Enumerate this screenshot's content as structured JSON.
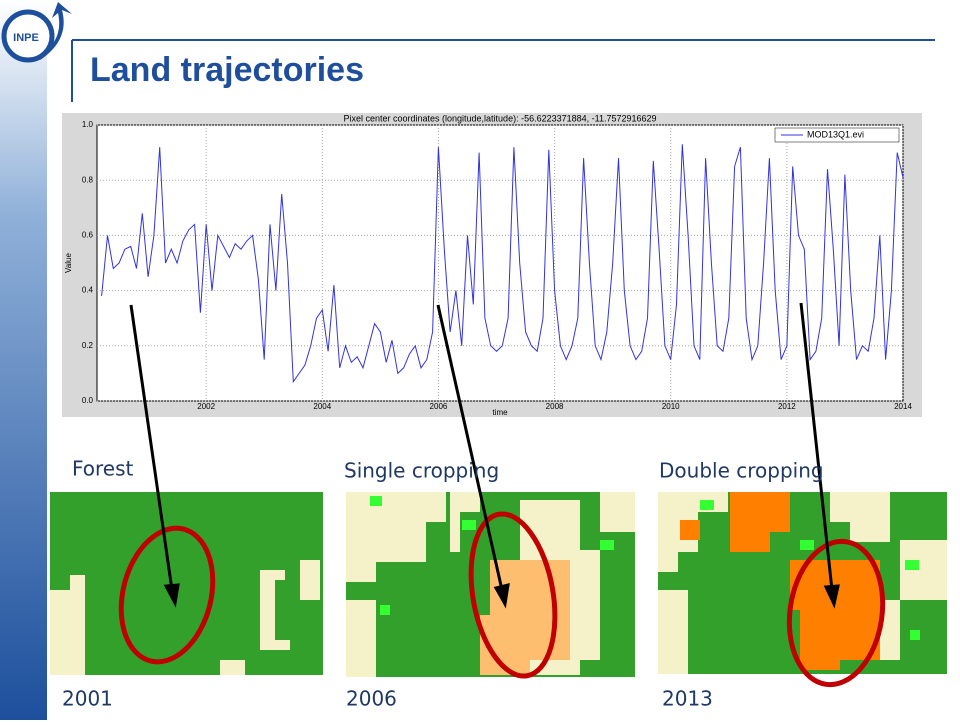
{
  "header": {
    "title": "Land trajectories"
  },
  "chart_data": {
    "type": "line",
    "title": "Pixel center coordinates (longitude,latitude): -56.6223371884, -11.7572916629",
    "xlabel": "time",
    "ylabel": "Value",
    "xlim": [
      2000.12,
      2014
    ],
    "ylim": [
      0,
      1
    ],
    "xticks": [
      2002,
      2004,
      2006,
      2008,
      2010,
      2012,
      2014
    ],
    "yticks": [
      {
        "value": 0,
        "label": "0.0"
      },
      {
        "value": 0.2,
        "label": "0.2"
      },
      {
        "value": 0.4,
        "label": "0.4"
      },
      {
        "value": 0.6,
        "label": "0.6"
      },
      {
        "value": 0.8,
        "label": "0.8"
      },
      {
        "value": 1,
        "label": "1.0"
      }
    ],
    "grid": true,
    "legend": "upper right",
    "series": [
      {
        "name": "MOD13Q1.evi",
        "color": "#3333dd",
        "x": [
          2000.2,
          2000.3,
          2000.4,
          2000.5,
          2000.6,
          2000.7,
          2000.8,
          2000.9,
          2001.0,
          2001.1,
          2001.2,
          2001.3,
          2001.4,
          2001.5,
          2001.6,
          2001.7,
          2001.8,
          2001.9,
          2002.0,
          2002.1,
          2002.2,
          2002.3,
          2002.4,
          2002.5,
          2002.6,
          2002.7,
          2002.8,
          2002.9,
          2003.0,
          2003.1,
          2003.2,
          2003.3,
          2003.4,
          2003.5,
          2003.6,
          2003.7,
          2003.8,
          2003.9,
          2004.0,
          2004.1,
          2004.2,
          2004.3,
          2004.4,
          2004.5,
          2004.6,
          2004.7,
          2004.8,
          2004.9,
          2005.0,
          2005.1,
          2005.2,
          2005.3,
          2005.4,
          2005.5,
          2005.6,
          2005.7,
          2005.8,
          2005.9,
          2006.0,
          2006.1,
          2006.2,
          2006.3,
          2006.4,
          2006.5,
          2006.6,
          2006.7,
          2006.8,
          2006.9,
          2007.0,
          2007.1,
          2007.2,
          2007.3,
          2007.4,
          2007.5,
          2007.6,
          2007.7,
          2007.8,
          2007.9,
          2008.0,
          2008.1,
          2008.2,
          2008.3,
          2008.4,
          2008.5,
          2008.6,
          2008.7,
          2008.8,
          2008.9,
          2009.0,
          2009.1,
          2009.2,
          2009.3,
          2009.4,
          2009.5,
          2009.6,
          2009.7,
          2009.8,
          2009.9,
          2010.0,
          2010.1,
          2010.2,
          2010.3,
          2010.4,
          2010.5,
          2010.6,
          2010.7,
          2010.8,
          2010.9,
          2011.0,
          2011.1,
          2011.2,
          2011.3,
          2011.4,
          2011.5,
          2011.6,
          2011.7,
          2011.8,
          2011.9,
          2012.0,
          2012.1,
          2012.2,
          2012.3,
          2012.4,
          2012.5,
          2012.6,
          2012.7,
          2012.8,
          2012.9,
          2013.0,
          2013.1,
          2013.2,
          2013.3,
          2013.4,
          2013.5,
          2013.6,
          2013.7,
          2013.8,
          2013.9,
          2014.0
        ],
        "values": [
          0.38,
          0.6,
          0.48,
          0.5,
          0.55,
          0.56,
          0.48,
          0.68,
          0.45,
          0.6,
          0.92,
          0.5,
          0.55,
          0.5,
          0.58,
          0.62,
          0.64,
          0.32,
          0.64,
          0.4,
          0.6,
          0.56,
          0.52,
          0.57,
          0.55,
          0.58,
          0.6,
          0.44,
          0.15,
          0.64,
          0.4,
          0.75,
          0.5,
          0.07,
          0.1,
          0.13,
          0.2,
          0.3,
          0.33,
          0.18,
          0.42,
          0.12,
          0.2,
          0.14,
          0.16,
          0.12,
          0.2,
          0.28,
          0.25,
          0.14,
          0.22,
          0.1,
          0.12,
          0.17,
          0.2,
          0.12,
          0.15,
          0.25,
          0.92,
          0.55,
          0.25,
          0.4,
          0.2,
          0.6,
          0.35,
          0.9,
          0.3,
          0.2,
          0.18,
          0.2,
          0.3,
          0.92,
          0.5,
          0.25,
          0.2,
          0.18,
          0.3,
          0.91,
          0.4,
          0.2,
          0.15,
          0.2,
          0.3,
          0.88,
          0.5,
          0.2,
          0.15,
          0.25,
          0.5,
          0.88,
          0.4,
          0.2,
          0.15,
          0.18,
          0.3,
          0.87,
          0.55,
          0.2,
          0.15,
          0.35,
          0.93,
          0.6,
          0.2,
          0.15,
          0.88,
          0.5,
          0.2,
          0.18,
          0.3,
          0.85,
          0.92,
          0.3,
          0.15,
          0.2,
          0.5,
          0.88,
          0.4,
          0.15,
          0.2,
          0.85,
          0.6,
          0.55,
          0.15,
          0.18,
          0.3,
          0.84,
          0.55,
          0.2,
          0.82,
          0.4,
          0.15,
          0.2,
          0.18,
          0.3,
          0.6,
          0.15,
          0.4,
          0.9,
          0.81
        ]
      }
    ]
  },
  "panels": [
    {
      "label": "Forest",
      "year": "2001"
    },
    {
      "label": "Single cropping",
      "year": "2006"
    },
    {
      "label": "Double cropping",
      "year": "2013"
    }
  ]
}
